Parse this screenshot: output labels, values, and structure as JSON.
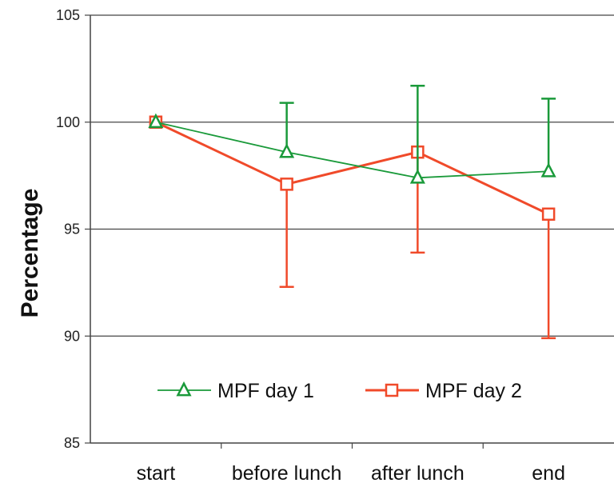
{
  "chart_data": {
    "type": "line",
    "title": "",
    "xlabel": "",
    "ylabel": "Percentage",
    "categories": [
      "start",
      "before lunch",
      "after lunch",
      "end"
    ],
    "ylim": [
      85,
      105
    ],
    "yticks": [
      85,
      90,
      95,
      100,
      105
    ],
    "grid": true,
    "legend_position": "bottom-center",
    "series": [
      {
        "name": "MPF day 1",
        "color": "#1a9a3a",
        "marker": "triangle",
        "values": [
          100,
          98.6,
          97.4,
          97.7
        ],
        "error_plus": [
          0,
          2.3,
          4.3,
          3.4
        ],
        "error_minus": [
          0,
          0,
          0,
          0
        ]
      },
      {
        "name": "MPF day 2",
        "color": "#f04a2a",
        "marker": "square",
        "values": [
          100,
          97.1,
          98.6,
          95.7
        ],
        "error_plus": [
          0,
          0,
          0,
          0
        ],
        "error_minus": [
          0,
          4.8,
          4.7,
          5.8
        ]
      }
    ]
  }
}
